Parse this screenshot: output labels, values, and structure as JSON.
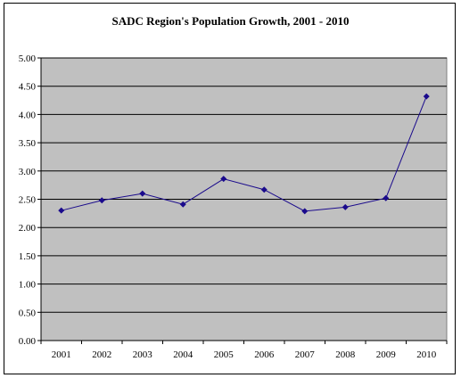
{
  "chart_data": {
    "type": "line",
    "title": "SADC Region's Population Growth, 2001 - 2010",
    "categories": [
      "2001",
      "2002",
      "2003",
      "2004",
      "2005",
      "2006",
      "2007",
      "2008",
      "2009",
      "2010"
    ],
    "series": [
      {
        "values": [
          2.3,
          2.48,
          2.6,
          2.41,
          2.86,
          2.67,
          2.29,
          2.36,
          2.52,
          4.32
        ]
      }
    ],
    "ylim": [
      0,
      5
    ],
    "y_ticks": [
      "0.00",
      "0.50",
      "1.00",
      "1.50",
      "2.00",
      "2.50",
      "3.00",
      "3.50",
      "4.00",
      "4.50",
      "5.00"
    ],
    "grid": true,
    "colors": {
      "line": "#1a0a8c",
      "marker": "#1a0a8c",
      "plot_bg": "#c0c0c0"
    }
  }
}
